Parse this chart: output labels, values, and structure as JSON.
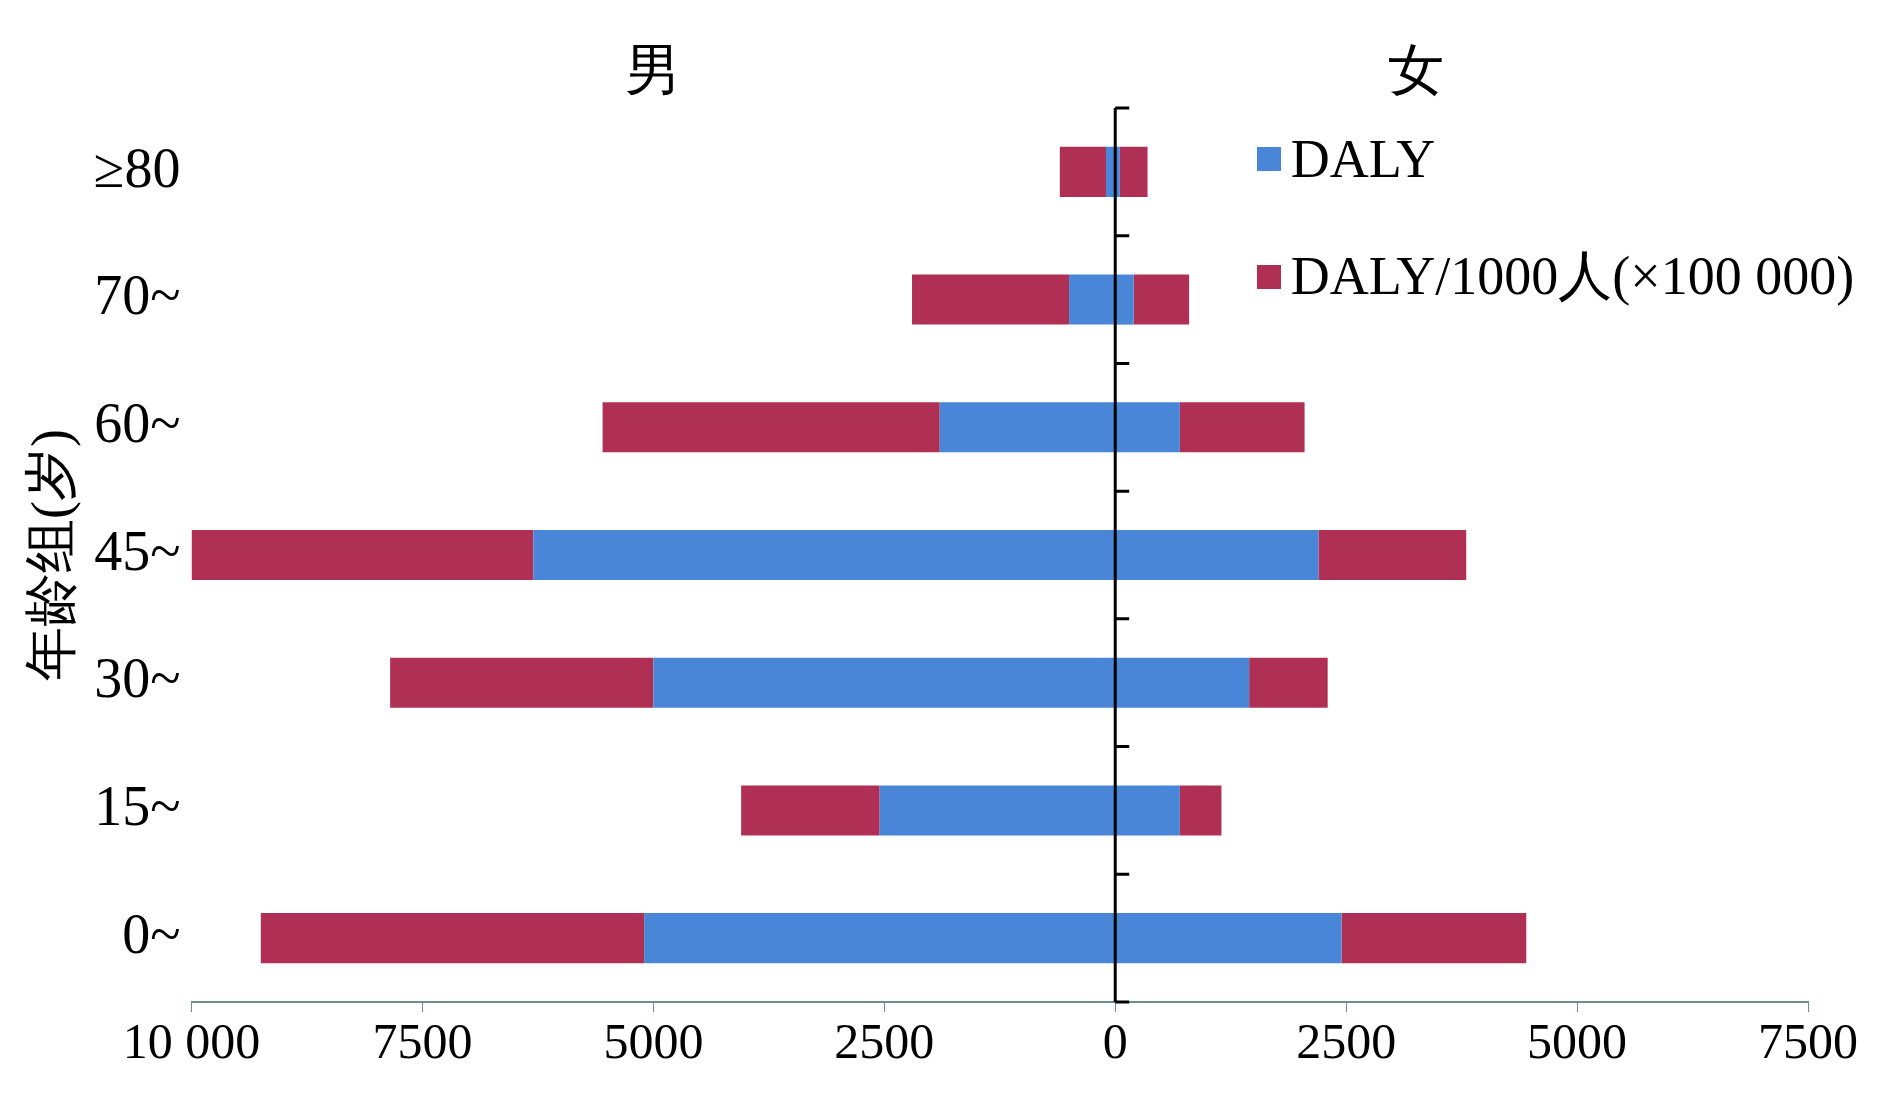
{
  "chart_data": {
    "type": "bar",
    "orientation": "horizontal",
    "stacked": true,
    "ylabel": "年龄组(岁)",
    "annotations": [
      "男",
      "女"
    ],
    "categories": [
      "≥80",
      "70~",
      "60~",
      "45~",
      "30~",
      "15~",
      "0~"
    ],
    "series": [
      {
        "name": "DALY",
        "color": "#4a86d8",
        "values": [
          -100,
          -500,
          -1900,
          -6300,
          -5000,
          -2550,
          -5100
        ]
      },
      {
        "color": "#4a86d8",
        "values": [
          50,
          200,
          700,
          2200,
          1450,
          700,
          2450
        ]
      },
      {
        "name": "DALY/1000人(×100 000)",
        "color": "#b03055",
        "values": [
          -500,
          -1700,
          -3650,
          -3700,
          -2850,
          -1500,
          -4150
        ]
      },
      {
        "color": "#b03055",
        "values": [
          300,
          600,
          1350,
          1600,
          850,
          450,
          2000
        ]
      }
    ],
    "xlim": [
      -10000,
      7500
    ],
    "xticks": [
      {
        "value": -10000,
        "label": "10 000"
      },
      {
        "value": -7500,
        "label": "7500"
      },
      {
        "value": -5000,
        "label": "5000"
      },
      {
        "value": -2500,
        "label": "2500"
      },
      0,
      2500,
      5000,
      7500
    ],
    "legend": "top right"
  }
}
